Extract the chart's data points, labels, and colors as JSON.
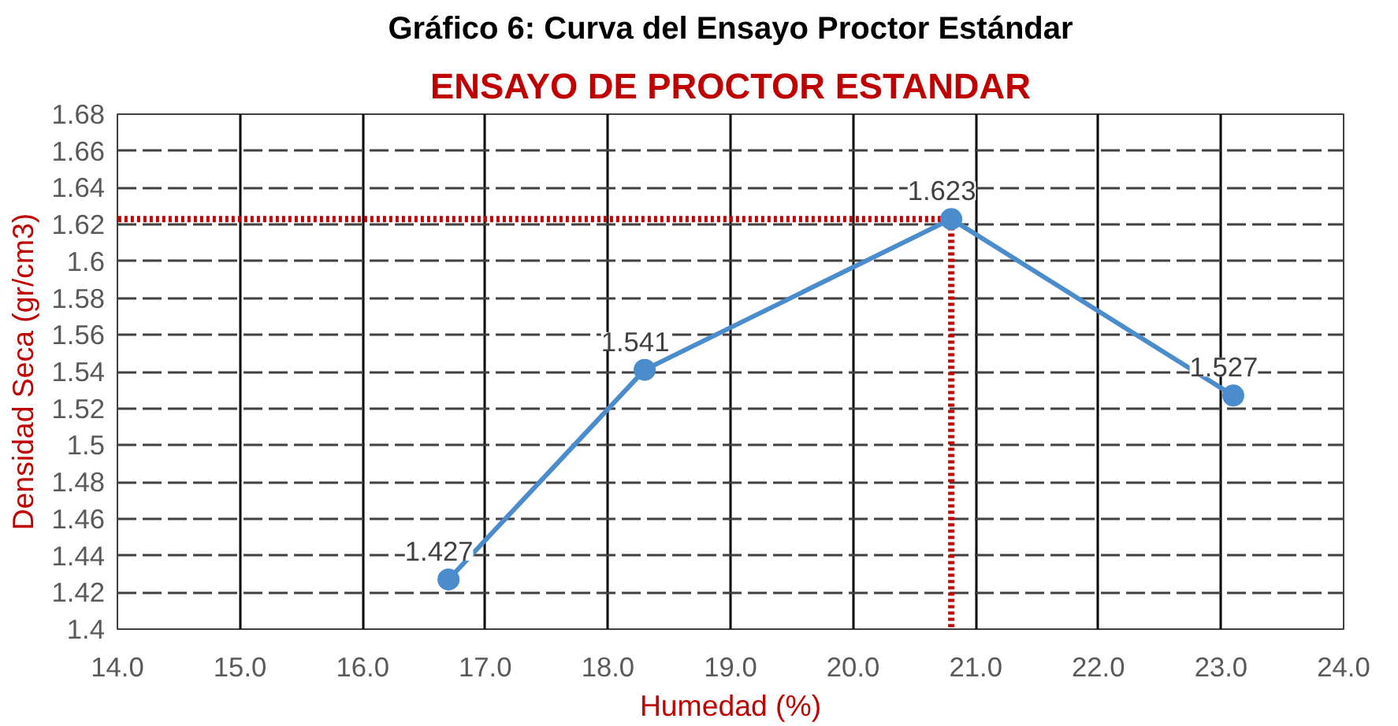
{
  "chart_data": {
    "type": "line",
    "title": "Gráfico 6: Curva del Ensayo Proctor Estándar",
    "subtitle": "ENSAYO DE PROCTOR ESTANDAR",
    "xlabel": "Humedad (%)",
    "ylabel": "Densidad Seca (gr/cm3)",
    "x": [
      16.7,
      18.3,
      20.8,
      23.1
    ],
    "series": [
      {
        "color": "#4a8ccc",
        "values": [
          1.427,
          1.541,
          1.623,
          1.527
        ]
      }
    ],
    "data_labels": true,
    "marker": "circle",
    "line_style": "solid",
    "grid": true,
    "xlim": [
      14,
      24
    ],
    "xticks": [
      {
        "value": 14,
        "label": "14.0"
      },
      {
        "value": 15,
        "label": "15.0"
      },
      {
        "value": 16,
        "label": "16.0"
      },
      {
        "value": 17,
        "label": "17.0"
      },
      {
        "value": 18,
        "label": "18.0"
      },
      {
        "value": 19,
        "label": "19.0"
      },
      {
        "value": 20,
        "label": "20.0"
      },
      {
        "value": 21,
        "label": "21.0"
      },
      {
        "value": 22,
        "label": "22.0"
      },
      {
        "value": 23,
        "label": "23.0"
      },
      {
        "value": 24,
        "label": "24.0"
      }
    ],
    "ylim": [
      1.4,
      1.68
    ],
    "yticks": [
      1.4,
      1.42,
      1.44,
      1.46,
      1.48,
      1.5,
      1.52,
      1.54,
      1.56,
      1.58,
      1.6,
      1.62,
      1.64,
      1.66,
      1.68
    ],
    "ref_lines": [
      {
        "axis": "y",
        "value": 1.623,
        "color": "#c00000",
        "line_style": "dotted"
      },
      {
        "axis": "x",
        "value": 20.8,
        "color": "#c00000",
        "line_style": "dotted"
      }
    ]
  }
}
